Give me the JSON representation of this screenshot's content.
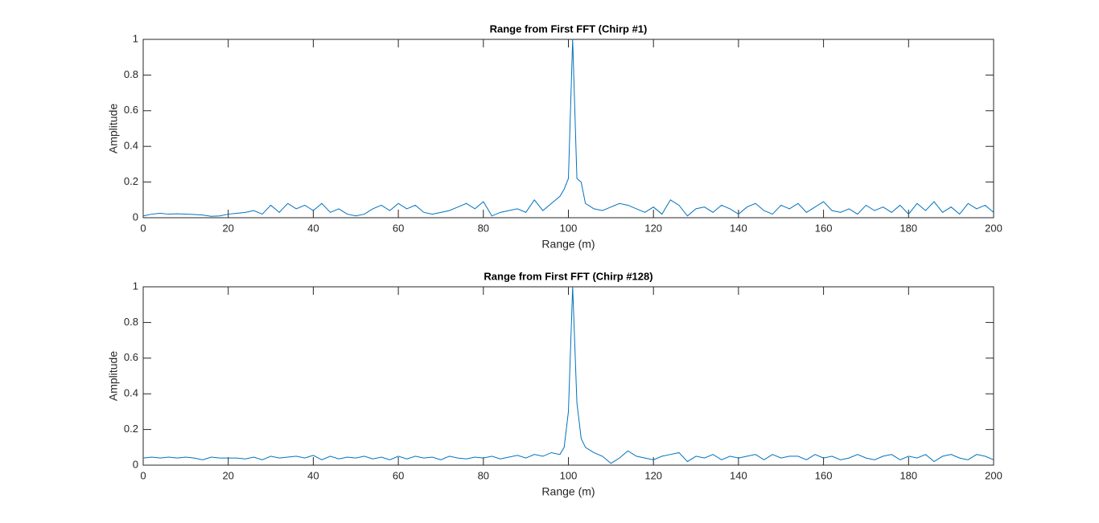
{
  "chart_data": [
    {
      "type": "line",
      "title": "Range from First FFT (Chirp #1)",
      "xlabel": "Range (m)",
      "ylabel": "Amplitude",
      "color": "#0072bd",
      "x": [
        0,
        2,
        4,
        6,
        8,
        10,
        12,
        14,
        16,
        18,
        20,
        22,
        24,
        26,
        28,
        30,
        32,
        34,
        36,
        38,
        40,
        42,
        44,
        46,
        48,
        50,
        52,
        54,
        56,
        58,
        60,
        62,
        64,
        66,
        68,
        70,
        72,
        74,
        76,
        78,
        80,
        82,
        84,
        86,
        88,
        90,
        92,
        94,
        96,
        98,
        99,
        100,
        101,
        102,
        103,
        104,
        106,
        108,
        110,
        112,
        114,
        116,
        118,
        120,
        122,
        124,
        126,
        128,
        130,
        132,
        134,
        136,
        138,
        140,
        142,
        144,
        146,
        148,
        150,
        152,
        154,
        156,
        158,
        160,
        162,
        164,
        166,
        168,
        170,
        172,
        174,
        176,
        178,
        180,
        182,
        184,
        186,
        188,
        190,
        192,
        194,
        196,
        198,
        200
      ],
      "values": [
        0.01,
        0.02,
        0.025,
        0.02,
        0.022,
        0.02,
        0.018,
        0.015,
        0.008,
        0.01,
        0.02,
        0.025,
        0.03,
        0.04,
        0.02,
        0.07,
        0.03,
        0.08,
        0.05,
        0.07,
        0.04,
        0.08,
        0.03,
        0.05,
        0.02,
        0.01,
        0.02,
        0.05,
        0.07,
        0.04,
        0.08,
        0.05,
        0.07,
        0.03,
        0.02,
        0.03,
        0.04,
        0.06,
        0.08,
        0.05,
        0.09,
        0.01,
        0.03,
        0.04,
        0.05,
        0.03,
        0.1,
        0.04,
        0.08,
        0.12,
        0.16,
        0.22,
        1,
        0.22,
        0.2,
        0.08,
        0.05,
        0.04,
        0.06,
        0.08,
        0.07,
        0.05,
        0.03,
        0.06,
        0.02,
        0.1,
        0.07,
        0.01,
        0.05,
        0.06,
        0.03,
        0.07,
        0.05,
        0.02,
        0.06,
        0.08,
        0.04,
        0.02,
        0.07,
        0.05,
        0.08,
        0.03,
        0.06,
        0.09,
        0.04,
        0.03,
        0.05,
        0.02,
        0.07,
        0.04,
        0.06,
        0.03,
        0.07,
        0.02,
        0.08,
        0.04,
        0.09,
        0.03,
        0.06,
        0.02,
        0.08,
        0.05,
        0.07,
        0.03
      ],
      "xlim": [
        0,
        200
      ],
      "xticks": [
        0,
        20,
        40,
        60,
        80,
        100,
        120,
        140,
        160,
        180,
        200
      ],
      "ylim": [
        0,
        1
      ],
      "yticks": [
        0,
        0.2,
        0.4,
        0.6,
        0.8,
        1
      ]
    },
    {
      "type": "line",
      "title": "Range from First FFT (Chirp #128)",
      "xlabel": "Range (m)",
      "ylabel": "Amplitude",
      "color": "#0072bd",
      "x": [
        0,
        2,
        4,
        6,
        8,
        10,
        12,
        14,
        16,
        18,
        20,
        22,
        24,
        26,
        28,
        30,
        32,
        34,
        36,
        38,
        40,
        42,
        44,
        46,
        48,
        50,
        52,
        54,
        56,
        58,
        60,
        62,
        64,
        66,
        68,
        70,
        72,
        74,
        76,
        78,
        80,
        82,
        84,
        86,
        88,
        90,
        92,
        94,
        96,
        98,
        99,
        100,
        101,
        102,
        103,
        104,
        106,
        108,
        110,
        112,
        114,
        116,
        118,
        120,
        122,
        124,
        126,
        128,
        130,
        132,
        134,
        136,
        138,
        140,
        142,
        144,
        146,
        148,
        150,
        152,
        154,
        156,
        158,
        160,
        162,
        164,
        166,
        168,
        170,
        172,
        174,
        176,
        178,
        180,
        182,
        184,
        186,
        188,
        190,
        192,
        194,
        196,
        198,
        200
      ],
      "values": [
        0.04,
        0.045,
        0.04,
        0.045,
        0.04,
        0.045,
        0.04,
        0.03,
        0.045,
        0.04,
        0.04,
        0.04,
        0.035,
        0.045,
        0.03,
        0.05,
        0.04,
        0.045,
        0.05,
        0.04,
        0.055,
        0.03,
        0.05,
        0.035,
        0.045,
        0.04,
        0.05,
        0.035,
        0.045,
        0.03,
        0.05,
        0.035,
        0.05,
        0.04,
        0.045,
        0.03,
        0.05,
        0.04,
        0.035,
        0.045,
        0.04,
        0.05,
        0.035,
        0.045,
        0.055,
        0.04,
        0.06,
        0.05,
        0.07,
        0.06,
        0.1,
        0.3,
        1,
        0.35,
        0.15,
        0.1,
        0.07,
        0.05,
        0.01,
        0.04,
        0.08,
        0.05,
        0.04,
        0.03,
        0.05,
        0.06,
        0.07,
        0.02,
        0.05,
        0.04,
        0.06,
        0.03,
        0.05,
        0.04,
        0.05,
        0.06,
        0.03,
        0.06,
        0.04,
        0.05,
        0.05,
        0.03,
        0.06,
        0.04,
        0.05,
        0.03,
        0.04,
        0.06,
        0.04,
        0.03,
        0.05,
        0.06,
        0.03,
        0.05,
        0.04,
        0.06,
        0.02,
        0.05,
        0.06,
        0.04,
        0.03,
        0.06,
        0.05,
        0.03
      ],
      "xlim": [
        0,
        200
      ],
      "xticks": [
        0,
        20,
        40,
        60,
        80,
        100,
        120,
        140,
        160,
        180,
        200
      ],
      "ylim": [
        0,
        1
      ],
      "yticks": [
        0,
        0.2,
        0.4,
        0.6,
        0.8,
        1
      ]
    }
  ]
}
